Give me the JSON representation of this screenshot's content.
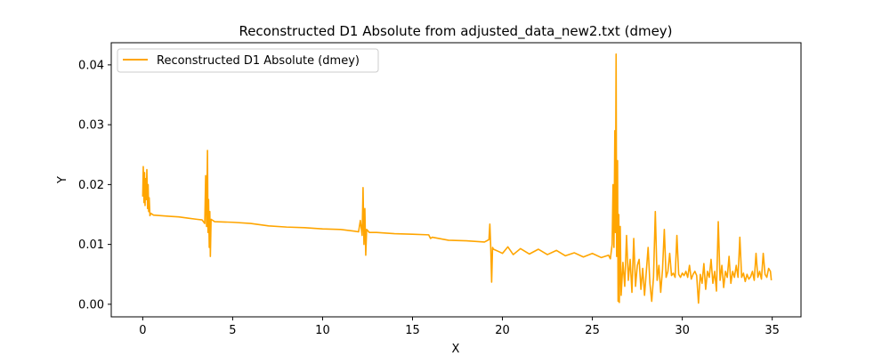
{
  "chart_data": {
    "type": "line",
    "title": "Reconstructed D1 Absolute from adjusted_data_new2.txt (dmey)",
    "xlabel": "X",
    "ylabel": "Y",
    "xlim": [
      -1.75,
      36.6
    ],
    "ylim": [
      -0.0021,
      0.0437
    ],
    "xticks": [
      0,
      5,
      10,
      15,
      20,
      25,
      30,
      35
    ],
    "yticks": [
      0.0,
      0.01,
      0.02,
      0.03,
      0.04
    ],
    "xtick_labels": [
      "0",
      "5",
      "10",
      "15",
      "20",
      "25",
      "30",
      "35"
    ],
    "ytick_labels": [
      "0.00",
      "0.01",
      "0.02",
      "0.03",
      "0.04"
    ],
    "grid": false,
    "legend_position": "top-left",
    "series": [
      {
        "name": "Reconstructed D1 Absolute (dmey)",
        "color": "#ffa500",
        "points": [
          [
            0.0,
            0.018
          ],
          [
            0.03,
            0.023
          ],
          [
            0.07,
            0.017
          ],
          [
            0.1,
            0.022
          ],
          [
            0.13,
            0.0165
          ],
          [
            0.16,
            0.021
          ],
          [
            0.2,
            0.0175
          ],
          [
            0.23,
            0.0225
          ],
          [
            0.27,
            0.016
          ],
          [
            0.3,
            0.02
          ],
          [
            0.33,
            0.0155
          ],
          [
            0.36,
            0.0178
          ],
          [
            0.4,
            0.0148
          ],
          [
            0.45,
            0.0152
          ],
          [
            0.6,
            0.0149
          ],
          [
            1.0,
            0.0148
          ],
          [
            1.5,
            0.0147
          ],
          [
            2.0,
            0.0146
          ],
          [
            2.5,
            0.0144
          ],
          [
            3.0,
            0.0142
          ],
          [
            3.3,
            0.0141
          ],
          [
            3.45,
            0.0135
          ],
          [
            3.5,
            0.0215
          ],
          [
            3.55,
            0.013
          ],
          [
            3.6,
            0.0257
          ],
          [
            3.63,
            0.012
          ],
          [
            3.66,
            0.0175
          ],
          [
            3.7,
            0.0095
          ],
          [
            3.73,
            0.0155
          ],
          [
            3.76,
            0.008
          ],
          [
            3.8,
            0.0142
          ],
          [
            4.0,
            0.0138
          ],
          [
            5.0,
            0.0137
          ],
          [
            6.0,
            0.0135
          ],
          [
            7.0,
            0.0131
          ],
          [
            8.0,
            0.0129
          ],
          [
            9.0,
            0.0128
          ],
          [
            10.0,
            0.0126
          ],
          [
            11.0,
            0.0125
          ],
          [
            11.8,
            0.0122
          ],
          [
            12.0,
            0.0121
          ],
          [
            12.1,
            0.014
          ],
          [
            12.2,
            0.0115
          ],
          [
            12.25,
            0.0195
          ],
          [
            12.3,
            0.01
          ],
          [
            12.35,
            0.016
          ],
          [
            12.4,
            0.0082
          ],
          [
            12.45,
            0.0125
          ],
          [
            12.6,
            0.012
          ],
          [
            13.0,
            0.012
          ],
          [
            14.0,
            0.0118
          ],
          [
            15.0,
            0.0117
          ],
          [
            15.9,
            0.0116
          ],
          [
            16.0,
            0.011
          ],
          [
            16.1,
            0.0112
          ],
          [
            17.0,
            0.0107
          ],
          [
            18.0,
            0.0106
          ],
          [
            19.0,
            0.0104
          ],
          [
            19.25,
            0.0108
          ],
          [
            19.3,
            0.0134
          ],
          [
            19.35,
            0.0095
          ],
          [
            19.4,
            0.0037
          ],
          [
            19.45,
            0.0095
          ],
          [
            19.5,
            0.0092
          ],
          [
            19.8,
            0.0088
          ],
          [
            20.0,
            0.0085
          ],
          [
            20.3,
            0.0096
          ],
          [
            20.6,
            0.0083
          ],
          [
            21.0,
            0.0093
          ],
          [
            21.5,
            0.0084
          ],
          [
            22.0,
            0.0092
          ],
          [
            22.5,
            0.0083
          ],
          [
            23.0,
            0.009
          ],
          [
            23.5,
            0.0081
          ],
          [
            24.0,
            0.0086
          ],
          [
            24.5,
            0.0079
          ],
          [
            25.0,
            0.0085
          ],
          [
            25.5,
            0.0078
          ],
          [
            25.9,
            0.0082
          ],
          [
            26.0,
            0.0076
          ],
          [
            26.1,
            0.01
          ],
          [
            26.15,
            0.02
          ],
          [
            26.2,
            0.0095
          ],
          [
            26.25,
            0.029
          ],
          [
            26.28,
            0.012
          ],
          [
            26.32,
            0.0418
          ],
          [
            26.35,
            0.008
          ],
          [
            26.4,
            0.024
          ],
          [
            26.43,
            0.0005
          ],
          [
            26.47,
            0.015
          ],
          [
            26.5,
            0.0003
          ],
          [
            26.55,
            0.013
          ],
          [
            26.6,
            0.0015
          ],
          [
            26.7,
            0.007
          ],
          [
            26.8,
            0.003
          ],
          [
            26.9,
            0.0115
          ],
          [
            27.0,
            0.004
          ],
          [
            27.1,
            0.0075
          ],
          [
            27.2,
            0.002
          ],
          [
            27.3,
            0.011
          ],
          [
            27.4,
            0.003
          ],
          [
            27.5,
            0.0065
          ],
          [
            27.6,
            0.0075
          ],
          [
            27.7,
            0.0025
          ],
          [
            27.8,
            0.006
          ],
          [
            27.9,
            0.0015
          ],
          [
            28.0,
            0.0055
          ],
          [
            28.1,
            0.0095
          ],
          [
            28.2,
            0.0035
          ],
          [
            28.3,
            0.0005
          ],
          [
            28.4,
            0.0045
          ],
          [
            28.5,
            0.0155
          ],
          [
            28.6,
            0.004
          ],
          [
            28.7,
            0.0065
          ],
          [
            28.8,
            0.002
          ],
          [
            28.9,
            0.0058
          ],
          [
            29.0,
            0.0125
          ],
          [
            29.1,
            0.0045
          ],
          [
            29.2,
            0.0055
          ],
          [
            29.3,
            0.0085
          ],
          [
            29.4,
            0.0048
          ],
          [
            29.5,
            0.0052
          ],
          [
            29.6,
            0.0045
          ],
          [
            29.7,
            0.0115
          ],
          [
            29.8,
            0.005
          ],
          [
            29.9,
            0.0045
          ],
          [
            30.0,
            0.0052
          ],
          [
            30.1,
            0.0048
          ],
          [
            30.2,
            0.0055
          ],
          [
            30.3,
            0.0045
          ],
          [
            30.4,
            0.0065
          ],
          [
            30.5,
            0.0042
          ],
          [
            30.6,
            0.005
          ],
          [
            30.7,
            0.0055
          ],
          [
            30.8,
            0.0048
          ],
          [
            30.9,
            0.0002
          ],
          [
            31.0,
            0.005
          ],
          [
            31.1,
            0.0035
          ],
          [
            31.2,
            0.0068
          ],
          [
            31.3,
            0.0025
          ],
          [
            31.4,
            0.0055
          ],
          [
            31.5,
            0.0045
          ],
          [
            31.6,
            0.0075
          ],
          [
            31.7,
            0.0035
          ],
          [
            31.8,
            0.0055
          ],
          [
            31.9,
            0.0022
          ],
          [
            32.0,
            0.0138
          ],
          [
            32.1,
            0.004
          ],
          [
            32.2,
            0.0065
          ],
          [
            32.3,
            0.0028
          ],
          [
            32.4,
            0.0055
          ],
          [
            32.5,
            0.0045
          ],
          [
            32.6,
            0.008
          ],
          [
            32.7,
            0.0035
          ],
          [
            32.8,
            0.0055
          ],
          [
            32.9,
            0.0045
          ],
          [
            33.0,
            0.0065
          ],
          [
            33.1,
            0.0045
          ],
          [
            33.2,
            0.0112
          ],
          [
            33.3,
            0.0045
          ],
          [
            33.4,
            0.0052
          ],
          [
            33.5,
            0.0038
          ],
          [
            33.6,
            0.005
          ],
          [
            33.7,
            0.0042
          ],
          [
            33.8,
            0.0046
          ],
          [
            33.9,
            0.0055
          ],
          [
            34.0,
            0.004
          ],
          [
            34.1,
            0.0085
          ],
          [
            34.2,
            0.0045
          ],
          [
            34.3,
            0.0055
          ],
          [
            34.4,
            0.0042
          ],
          [
            34.5,
            0.0085
          ],
          [
            34.6,
            0.005
          ],
          [
            34.7,
            0.0045
          ],
          [
            34.8,
            0.006
          ],
          [
            34.9,
            0.0055
          ],
          [
            34.95,
            0.004
          ]
        ]
      }
    ]
  }
}
